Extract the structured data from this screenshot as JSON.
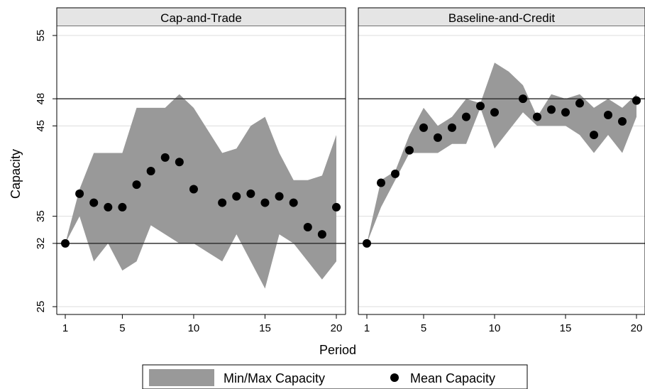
{
  "chart_data": {
    "type": "area",
    "xlabel": "Period",
    "ylabel": "Capacity",
    "xlim": [
      1,
      20
    ],
    "ylim": [
      25,
      55
    ],
    "xticks": [
      1,
      5,
      10,
      15,
      20
    ],
    "yticks": [
      25,
      32,
      35,
      45,
      48,
      55
    ],
    "reference_lines": [
      32,
      48
    ],
    "legend": {
      "placement": "bottom",
      "entries": [
        "Min/Max Capacity",
        "Mean Capacity"
      ]
    },
    "colors": {
      "band": "#999999",
      "mean": "#000000",
      "facet_header": "#e5e5e5"
    },
    "facets": [
      {
        "title": "Cap-and-Trade",
        "x": [
          1,
          2,
          3,
          4,
          5,
          6,
          7,
          8,
          9,
          10,
          11,
          12,
          13,
          14,
          15,
          16,
          17,
          18,
          19,
          20
        ],
        "min": [
          32,
          35,
          30,
          32,
          29,
          30,
          34,
          33,
          32,
          32,
          31,
          30,
          33,
          30,
          27,
          33,
          32,
          30,
          28,
          30
        ],
        "max": [
          32,
          38,
          42,
          42,
          42,
          47,
          47,
          47,
          48.5,
          47,
          44.5,
          42,
          42.5,
          45,
          46,
          42,
          39,
          39,
          39.5,
          44
        ],
        "mean": [
          32,
          37.5,
          36.5,
          36,
          36,
          38.5,
          40,
          41.5,
          41,
          38,
          null,
          36.5,
          37.2,
          37.5,
          36.5,
          37.2,
          36.5,
          33.8,
          33,
          36
        ]
      },
      {
        "title": "Baseline-and-Credit",
        "x": [
          1,
          2,
          3,
          4,
          5,
          6,
          7,
          8,
          9,
          10,
          11,
          12,
          13,
          14,
          15,
          16,
          17,
          18,
          19,
          20
        ],
        "min": [
          32,
          36,
          39,
          42,
          42,
          42,
          43,
          43,
          47,
          42.5,
          44.5,
          46.5,
          45,
          45,
          45,
          44,
          42,
          44,
          42,
          46
        ],
        "max": [
          32,
          39,
          40,
          44,
          47,
          45,
          46,
          48,
          47.5,
          52,
          51,
          49.5,
          46,
          48.5,
          48,
          48.5,
          47,
          48,
          47,
          48.5
        ],
        "mean": [
          32,
          38.7,
          39.7,
          42.3,
          44.8,
          43.7,
          44.8,
          46,
          47.2,
          46.5,
          null,
          48,
          46,
          46.8,
          46.5,
          47.5,
          44,
          46.2,
          45.5,
          47.8
        ]
      }
    ]
  }
}
